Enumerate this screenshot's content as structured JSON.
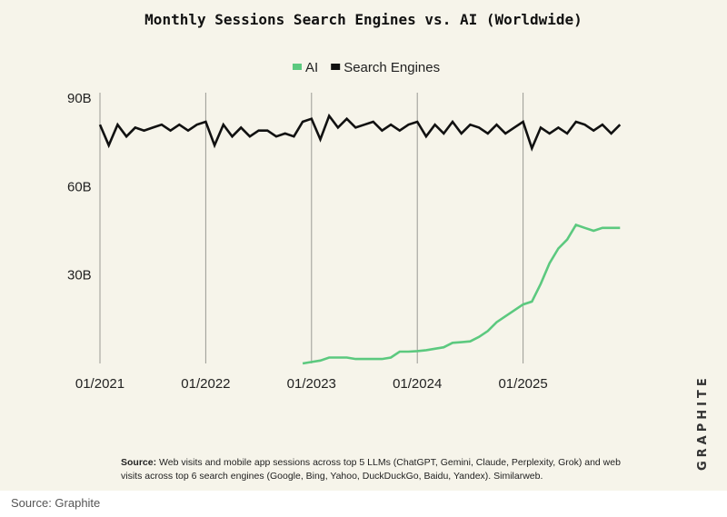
{
  "chart_data": {
    "type": "line",
    "title": "Monthly Sessions Search Engines vs. AI (Worldwide)",
    "xlabel": "",
    "ylabel": "",
    "ylim": [
      0,
      90
    ],
    "y_ticks": [
      "90B",
      "60B",
      "30B"
    ],
    "y_tick_values": [
      90,
      60,
      30
    ],
    "x_ticks": [
      "01/2021",
      "01/2022",
      "01/2023",
      "01/2024",
      "01/2025"
    ],
    "x_tick_values": [
      "2021-01",
      "2022-01",
      "2023-01",
      "2024-01",
      "2025-01"
    ],
    "grid": "vertical lines at January of each year",
    "legend_placement": "top-center",
    "series": [
      {
        "name": "Search Engines",
        "color": "#111111",
        "x": [
          "2021-01",
          "2021-02",
          "2021-03",
          "2021-04",
          "2021-05",
          "2021-06",
          "2021-07",
          "2021-08",
          "2021-09",
          "2021-10",
          "2021-11",
          "2021-12",
          "2022-01",
          "2022-02",
          "2022-03",
          "2022-04",
          "2022-05",
          "2022-06",
          "2022-07",
          "2022-08",
          "2022-09",
          "2022-10",
          "2022-11",
          "2022-12",
          "2023-01",
          "2023-02",
          "2023-03",
          "2023-04",
          "2023-05",
          "2023-06",
          "2023-07",
          "2023-08",
          "2023-09",
          "2023-10",
          "2023-11",
          "2023-12",
          "2024-01",
          "2024-02",
          "2024-03",
          "2024-04",
          "2024-05",
          "2024-06",
          "2024-07",
          "2024-08",
          "2024-09",
          "2024-10",
          "2024-11",
          "2024-12",
          "2025-01",
          "2025-02",
          "2025-03",
          "2025-04",
          "2025-05",
          "2025-06",
          "2025-07",
          "2025-08",
          "2025-09",
          "2025-10",
          "2025-11",
          "2025-12"
        ],
        "values": [
          81,
          74,
          81,
          77,
          80,
          79,
          80,
          81,
          79,
          81,
          79,
          81,
          82,
          74,
          81,
          77,
          80,
          77,
          79,
          79,
          77,
          78,
          77,
          82,
          83,
          76,
          84,
          80,
          83,
          80,
          81,
          82,
          79,
          81,
          79,
          81,
          82,
          77,
          81,
          78,
          82,
          78,
          81,
          80,
          78,
          81,
          78,
          80,
          82,
          73,
          80,
          78,
          80,
          78,
          82,
          81,
          79,
          81,
          78,
          81
        ]
      },
      {
        "name": "AI",
        "color": "#5cc97f",
        "x": [
          "2022-12",
          "2023-01",
          "2023-02",
          "2023-03",
          "2023-04",
          "2023-05",
          "2023-06",
          "2023-07",
          "2023-08",
          "2023-09",
          "2023-10",
          "2023-11",
          "2023-12",
          "2024-01",
          "2024-02",
          "2024-03",
          "2024-04",
          "2024-05",
          "2024-06",
          "2024-07",
          "2024-08",
          "2024-09",
          "2024-10",
          "2024-11",
          "2024-12",
          "2025-01",
          "2025-02",
          "2025-03",
          "2025-04",
          "2025-05",
          "2025-06",
          "2025-07",
          "2025-08",
          "2025-09",
          "2025-10",
          "2025-11",
          "2025-12"
        ],
        "values": [
          0,
          0.5,
          1,
          2,
          2,
          2,
          1.5,
          1.5,
          1.5,
          1.5,
          2,
          4,
          4,
          4.2,
          4.5,
          5,
          5.5,
          7,
          7.2,
          7.5,
          9,
          11,
          14,
          16,
          18,
          20,
          21,
          27,
          34,
          39,
          42,
          47,
          46,
          45,
          46,
          46,
          46
        ]
      }
    ]
  },
  "source": {
    "label": "Source:",
    "text": "Web visits and mobile app sessions across top 5 LLMs (ChatGPT, Gemini, Claude, Perplexity, Grok) and web visits across top 6 search engines (Google, Bing, Yahoo, DuckDuckGo, Baidu, Yandex). Similarweb."
  },
  "brand": "GRAPHITE",
  "caption": "Source:  Graphite"
}
